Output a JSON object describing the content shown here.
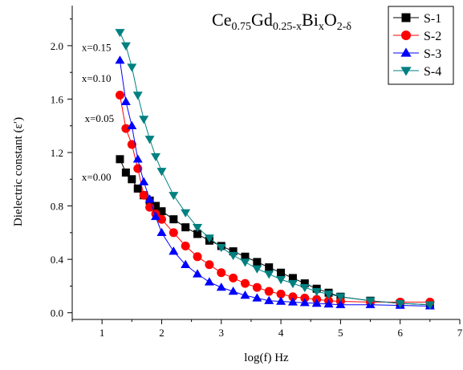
{
  "chart_data": {
    "type": "line",
    "title": {
      "parts": [
        {
          "text": "Ce",
          "sub": false
        },
        {
          "text": "0.75",
          "sub": true
        },
        {
          "text": "Gd",
          "sub": false
        },
        {
          "text": "0.25-x",
          "sub": true
        },
        {
          "text": "Bi",
          "sub": false
        },
        {
          "text": "x",
          "sub": true
        },
        {
          "text": "O",
          "sub": false
        },
        {
          "text": "2-δ",
          "sub": true
        }
      ]
    },
    "xlabel": "log(f) Hz",
    "ylabel": "Dielectric constant (ε′)",
    "xlim": [
      0.5,
      7
    ],
    "ylim": [
      -0.05,
      2.3
    ],
    "xticks": [
      1,
      2,
      3,
      4,
      5,
      6,
      7
    ],
    "yticks": [
      0.0,
      0.4,
      0.8,
      1.2,
      1.6,
      2.0
    ],
    "xtick_labels": [
      "1",
      "2",
      "3",
      "4",
      "5",
      "6",
      "7"
    ],
    "ytick_labels": [
      "0.0",
      "0.4",
      "0.8",
      "1.2",
      "1.6",
      "2.0"
    ],
    "legend_position": "top-right",
    "annotations": [
      {
        "text": "x=0.15",
        "x": 0.66,
        "y": 1.99
      },
      {
        "text": "x=0.10",
        "x": 0.66,
        "y": 1.76
      },
      {
        "text": "x=0.05",
        "x": 0.71,
        "y": 1.46
      },
      {
        "text": "x=0.00",
        "x": 0.66,
        "y": 1.02
      }
    ],
    "series": [
      {
        "name": "S-1",
        "color": "#000000",
        "marker": "square",
        "x": [
          1.3,
          1.4,
          1.5,
          1.6,
          1.7,
          1.8,
          1.9,
          2.0,
          2.2,
          2.4,
          2.6,
          2.8,
          3.0,
          3.2,
          3.4,
          3.6,
          3.8,
          4.0,
          4.2,
          4.4,
          4.6,
          4.8,
          5.0,
          5.5,
          6.0,
          6.5
        ],
        "y": [
          1.15,
          1.05,
          1.0,
          0.93,
          0.88,
          0.84,
          0.8,
          0.76,
          0.7,
          0.64,
          0.59,
          0.54,
          0.5,
          0.46,
          0.42,
          0.38,
          0.34,
          0.3,
          0.26,
          0.22,
          0.18,
          0.15,
          0.12,
          0.09,
          0.07,
          0.06
        ]
      },
      {
        "name": "S-2",
        "color": "#ff0000",
        "marker": "circle",
        "x": [
          1.3,
          1.4,
          1.5,
          1.6,
          1.7,
          1.8,
          1.9,
          2.0,
          2.2,
          2.4,
          2.6,
          2.8,
          3.0,
          3.2,
          3.4,
          3.6,
          3.8,
          4.0,
          4.2,
          4.4,
          4.6,
          4.8,
          5.0,
          5.5,
          6.0,
          6.5
        ],
        "y": [
          1.63,
          1.38,
          1.26,
          1.08,
          0.88,
          0.79,
          0.74,
          0.7,
          0.6,
          0.5,
          0.42,
          0.36,
          0.3,
          0.26,
          0.22,
          0.19,
          0.16,
          0.14,
          0.12,
          0.11,
          0.1,
          0.09,
          0.085,
          0.08,
          0.08,
          0.08
        ]
      },
      {
        "name": "S-3",
        "color": "#0000ff",
        "marker": "triangle-up",
        "x": [
          1.3,
          1.4,
          1.5,
          1.6,
          1.7,
          1.8,
          1.9,
          2.0,
          2.2,
          2.4,
          2.6,
          2.8,
          3.0,
          3.2,
          3.4,
          3.6,
          3.8,
          4.0,
          4.2,
          4.4,
          4.6,
          4.8,
          5.0,
          5.5,
          6.0,
          6.5
        ],
        "y": [
          1.89,
          1.58,
          1.4,
          1.15,
          0.98,
          0.85,
          0.72,
          0.6,
          0.46,
          0.36,
          0.29,
          0.23,
          0.19,
          0.16,
          0.13,
          0.11,
          0.09,
          0.085,
          0.08,
          0.075,
          0.07,
          0.065,
          0.06,
          0.06,
          0.055,
          0.05
        ]
      },
      {
        "name": "S-4",
        "color": "#008080",
        "marker": "triangle-down",
        "x": [
          1.3,
          1.4,
          1.5,
          1.6,
          1.7,
          1.8,
          1.9,
          2.0,
          2.2,
          2.4,
          2.6,
          2.8,
          3.0,
          3.2,
          3.4,
          3.6,
          3.8,
          4.0,
          4.2,
          4.4,
          4.6,
          4.8,
          5.0,
          5.5,
          6.0,
          6.5
        ],
        "y": [
          2.1,
          2.0,
          1.84,
          1.63,
          1.45,
          1.3,
          1.17,
          1.06,
          0.88,
          0.75,
          0.64,
          0.56,
          0.49,
          0.43,
          0.38,
          0.33,
          0.29,
          0.25,
          0.22,
          0.19,
          0.16,
          0.14,
          0.12,
          0.09,
          0.07,
          0.06
        ]
      }
    ]
  }
}
